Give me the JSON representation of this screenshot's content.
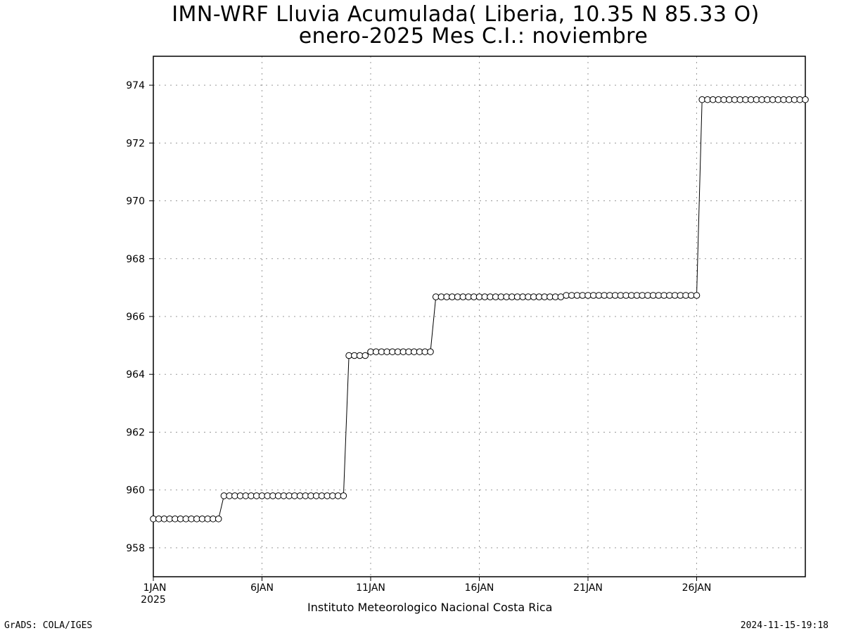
{
  "title_line1": "IMN-WRF  Lluvia Acumulada( Liberia, 10.35  N 85.33  O)",
  "title_line2": "enero-2025 Mes C.I.: noviembre",
  "footer_center": "Instituto Meteorologico Nacional Costa Rica",
  "footer_left": "GrADS: COLA/IGES",
  "footer_right": "2024-11-15-19:18",
  "chart_data": {
    "type": "line",
    "title": "IMN-WRF  Lluvia Acumulada( Liberia, 10.35  N 85.33  O)",
    "subtitle": "enero-2025 Mes C.I.: noviembre",
    "xlabel": "",
    "ylabel": "",
    "x_unit": "days since 1JAN 2025 (6-hourly steps)",
    "xlim": [
      0,
      30
    ],
    "ylim": [
      957,
      975
    ],
    "yticks": [
      958,
      960,
      962,
      964,
      966,
      968,
      970,
      972,
      974
    ],
    "xticks": [
      {
        "x": 0,
        "label": "1JAN",
        "sublabel": "2025"
      },
      {
        "x": 5,
        "label": "6JAN"
      },
      {
        "x": 10,
        "label": "11JAN"
      },
      {
        "x": 15,
        "label": "16JAN"
      },
      {
        "x": 20,
        "label": "21JAN"
      },
      {
        "x": 25,
        "label": "26JAN"
      }
    ],
    "grid": true,
    "marker": "open-circle",
    "step": 0.25,
    "segments": [
      {
        "count": 13,
        "value": 959.0
      },
      {
        "count": 23,
        "value": 959.8
      },
      {
        "count": 4,
        "value": 964.65
      },
      {
        "count": 12,
        "value": 964.78
      },
      {
        "count": 24,
        "value": 966.68
      },
      {
        "count": 25,
        "value": 966.73
      },
      {
        "count": 20,
        "value": 973.5
      }
    ]
  }
}
